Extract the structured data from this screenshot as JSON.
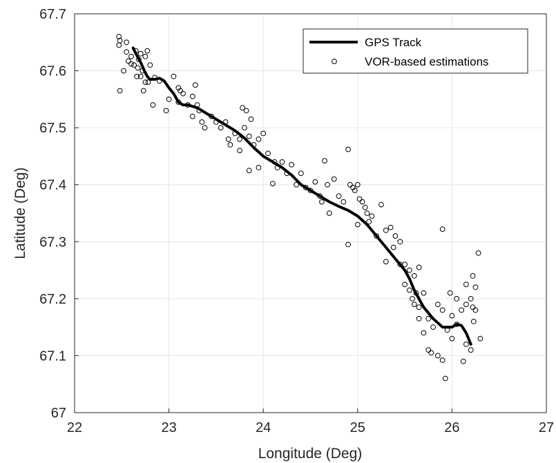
{
  "chart_data": {
    "type": "scatter",
    "title": "",
    "xlabel": "Longitude (Deg)",
    "ylabel": "Latitude (Deg)",
    "xlim": [
      22,
      27
    ],
    "ylim": [
      67,
      67.7
    ],
    "xticks": [
      22,
      23,
      24,
      25,
      26,
      27
    ],
    "yticks": [
      67,
      67.1,
      67.2,
      67.3,
      67.4,
      67.5,
      67.6,
      67.7
    ],
    "grid": true,
    "legend_position": "top-right",
    "colors": {
      "track": "#000000",
      "markers": "#000000",
      "grid": "#e6e6e6",
      "axes": "#262626"
    },
    "series": [
      {
        "name": "GPS Track",
        "kind": "line",
        "x": [
          22.62,
          22.65,
          22.7,
          22.74,
          22.77,
          22.8,
          22.85,
          22.9,
          22.95,
          23.0,
          23.05,
          23.1,
          23.15,
          23.2,
          23.3,
          23.4,
          23.5,
          23.6,
          23.7,
          23.8,
          23.9,
          24.0,
          24.1,
          24.2,
          24.3,
          24.4,
          24.5,
          24.6,
          24.7,
          24.8,
          24.9,
          25.0,
          25.1,
          25.2,
          25.3,
          25.4,
          25.5,
          25.55,
          25.6,
          25.7,
          25.8,
          25.9,
          26.0,
          26.05,
          26.1,
          26.15,
          26.2
        ],
        "y": [
          67.64,
          67.63,
          67.615,
          67.6,
          67.59,
          67.585,
          67.585,
          67.587,
          67.582,
          67.57,
          67.56,
          67.545,
          67.54,
          67.54,
          67.535,
          67.525,
          67.515,
          67.505,
          67.495,
          67.482,
          67.465,
          67.45,
          67.44,
          67.43,
          67.417,
          67.4,
          67.39,
          67.38,
          67.37,
          67.362,
          67.355,
          67.345,
          67.33,
          67.31,
          67.29,
          67.27,
          67.25,
          67.235,
          67.215,
          67.185,
          67.165,
          67.15,
          67.15,
          67.155,
          67.153,
          67.14,
          67.12
        ]
      },
      {
        "name": "VOR-based estimations",
        "kind": "scatter",
        "points": [
          [
            22.47,
            67.66
          ],
          [
            22.47,
            67.645
          ],
          [
            22.48,
            67.653
          ],
          [
            22.55,
            67.65
          ],
          [
            22.55,
            67.633
          ],
          [
            22.57,
            67.617
          ],
          [
            22.6,
            67.625
          ],
          [
            22.6,
            67.612
          ],
          [
            22.63,
            67.61
          ],
          [
            22.65,
            67.635
          ],
          [
            22.68,
            67.62
          ],
          [
            22.7,
            67.63
          ],
          [
            22.67,
            67.605
          ],
          [
            22.72,
            67.6
          ],
          [
            22.66,
            67.59
          ],
          [
            22.7,
            67.59
          ],
          [
            22.75,
            67.625
          ],
          [
            22.77,
            67.635
          ],
          [
            22.8,
            67.61
          ],
          [
            22.75,
            67.58
          ],
          [
            22.78,
            67.58
          ],
          [
            22.85,
            67.588
          ],
          [
            22.9,
            67.582
          ],
          [
            22.52,
            67.6
          ],
          [
            22.48,
            67.565
          ],
          [
            22.73,
            67.565
          ],
          [
            22.83,
            67.54
          ],
          [
            22.97,
            67.53
          ],
          [
            23.0,
            67.55
          ],
          [
            23.05,
            67.59
          ],
          [
            23.1,
            67.57
          ],
          [
            23.12,
            67.565
          ],
          [
            23.15,
            67.56
          ],
          [
            23.1,
            67.545
          ],
          [
            23.2,
            67.54
          ],
          [
            23.25,
            67.555
          ],
          [
            23.28,
            67.575
          ],
          [
            23.3,
            67.54
          ],
          [
            23.32,
            67.53
          ],
          [
            23.25,
            67.52
          ],
          [
            23.35,
            67.51
          ],
          [
            23.38,
            67.5
          ],
          [
            23.45,
            67.52
          ],
          [
            23.5,
            67.51
          ],
          [
            23.55,
            67.5
          ],
          [
            23.6,
            67.51
          ],
          [
            23.63,
            67.48
          ],
          [
            23.65,
            67.47
          ],
          [
            23.7,
            67.49
          ],
          [
            23.75,
            67.46
          ],
          [
            23.75,
            67.48
          ],
          [
            23.78,
            67.535
          ],
          [
            23.8,
            67.5
          ],
          [
            23.82,
            67.53
          ],
          [
            23.85,
            67.485
          ],
          [
            23.87,
            67.515
          ],
          [
            23.9,
            67.47
          ],
          [
            23.95,
            67.48
          ],
          [
            24.0,
            67.49
          ],
          [
            24.05,
            67.455
          ],
          [
            23.85,
            67.425
          ],
          [
            23.95,
            67.43
          ],
          [
            24.12,
            67.44
          ],
          [
            24.15,
            67.43
          ],
          [
            24.1,
            67.402
          ],
          [
            24.2,
            67.44
          ],
          [
            24.25,
            67.42
          ],
          [
            24.3,
            67.435
          ],
          [
            24.35,
            67.4
          ],
          [
            24.4,
            67.42
          ],
          [
            24.45,
            67.395
          ],
          [
            24.5,
            67.39
          ],
          [
            24.55,
            67.405
          ],
          [
            24.6,
            67.38
          ],
          [
            24.62,
            67.37
          ],
          [
            24.65,
            67.442
          ],
          [
            24.68,
            67.4
          ],
          [
            24.75,
            67.41
          ],
          [
            24.7,
            67.35
          ],
          [
            24.8,
            67.38
          ],
          [
            24.85,
            67.37
          ],
          [
            24.9,
            67.462
          ],
          [
            24.92,
            67.4
          ],
          [
            24.95,
            67.395
          ],
          [
            24.97,
            67.39
          ],
          [
            25.0,
            67.4
          ],
          [
            25.02,
            67.375
          ],
          [
            25.05,
            67.37
          ],
          [
            25.08,
            67.36
          ],
          [
            25.1,
            67.35
          ],
          [
            25.12,
            67.335
          ],
          [
            25.15,
            67.345
          ],
          [
            25.0,
            67.33
          ],
          [
            24.9,
            67.295
          ],
          [
            25.2,
            67.31
          ],
          [
            25.25,
            67.365
          ],
          [
            25.3,
            67.32
          ],
          [
            25.35,
            67.325
          ],
          [
            25.4,
            67.31
          ],
          [
            25.45,
            67.3
          ],
          [
            25.38,
            67.29
          ],
          [
            25.3,
            67.265
          ],
          [
            25.45,
            67.26
          ],
          [
            25.5,
            67.26
          ],
          [
            25.55,
            67.25
          ],
          [
            25.6,
            67.24
          ],
          [
            25.65,
            67.255
          ],
          [
            25.5,
            67.225
          ],
          [
            25.55,
            67.215
          ],
          [
            25.62,
            67.21
          ],
          [
            25.58,
            67.2
          ],
          [
            25.6,
            67.19
          ],
          [
            25.65,
            67.185
          ],
          [
            25.7,
            67.21
          ],
          [
            25.65,
            67.165
          ],
          [
            25.7,
            67.14
          ],
          [
            25.75,
            67.165
          ],
          [
            25.8,
            67.15
          ],
          [
            25.85,
            67.19
          ],
          [
            25.9,
            67.18
          ],
          [
            25.9,
            67.322
          ],
          [
            25.95,
            67.145
          ],
          [
            26.0,
            67.17
          ],
          [
            25.98,
            67.21
          ],
          [
            26.05,
            67.2
          ],
          [
            26.1,
            67.18
          ],
          [
            26.15,
            67.19
          ],
          [
            26.2,
            67.2
          ],
          [
            26.22,
            67.185
          ],
          [
            26.25,
            67.18
          ],
          [
            26.22,
            67.24
          ],
          [
            26.28,
            67.28
          ],
          [
            26.15,
            67.225
          ],
          [
            26.25,
            67.22
          ],
          [
            26.2,
            67.11
          ],
          [
            26.15,
            67.12
          ],
          [
            26.3,
            67.13
          ],
          [
            26.12,
            67.09
          ],
          [
            25.9,
            67.092
          ],
          [
            25.75,
            67.11
          ],
          [
            25.78,
            67.105
          ],
          [
            25.85,
            67.1
          ],
          [
            25.93,
            67.06
          ],
          [
            26.0,
            67.13
          ],
          [
            26.05,
            67.155
          ],
          [
            26.23,
            67.16
          ]
        ]
      }
    ]
  }
}
